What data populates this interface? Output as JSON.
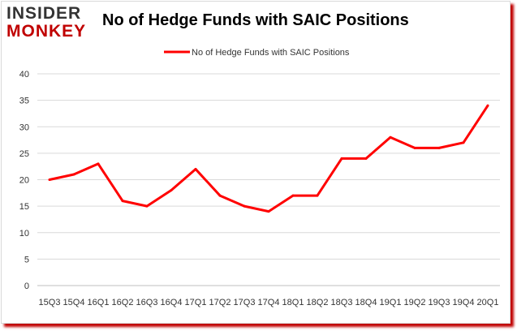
{
  "logo": {
    "line1": "INSIDER",
    "line2": "MONKEY"
  },
  "chart_data": {
    "type": "line",
    "title": "No of Hedge Funds with SAIC Positions",
    "categories": [
      "15Q3",
      "15Q4",
      "16Q1",
      "16Q2",
      "16Q3",
      "16Q4",
      "17Q1",
      "17Q2",
      "17Q3",
      "17Q4",
      "18Q1",
      "18Q2",
      "18Q3",
      "18Q4",
      "19Q1",
      "19Q2",
      "19Q3",
      "19Q4",
      "20Q1"
    ],
    "series": [
      {
        "name": "No of Hedge Funds with SAIC Positions",
        "values": [
          20,
          21,
          23,
          16,
          15,
          18,
          22,
          17,
          15,
          14,
          17,
          17,
          24,
          24,
          28,
          26,
          26,
          27,
          34
        ]
      }
    ],
    "ylim": [
      0,
      40
    ],
    "yticks": [
      0,
      5,
      10,
      15,
      20,
      25,
      30,
      35,
      40
    ],
    "grid": true,
    "legend": "top-center",
    "color": "#ff0000"
  }
}
